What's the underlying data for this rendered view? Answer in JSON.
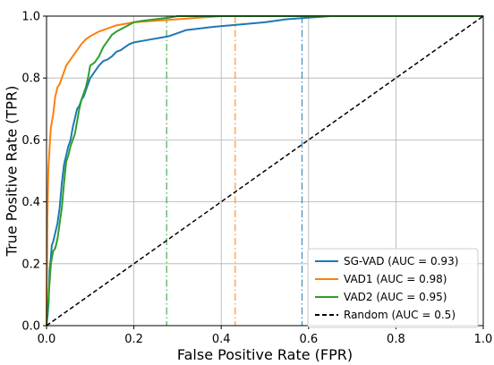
{
  "chart_data": {
    "type": "line",
    "title": "",
    "xlabel": "False Positive Rate (FPR)",
    "ylabel": "True Positive Rate (TPR)",
    "xlim": [
      0.0,
      1.0
    ],
    "ylim": [
      0.0,
      1.0
    ],
    "x_ticks": [
      "0.0",
      "0.2",
      "0.4",
      "0.6",
      "0.8",
      "1.0"
    ],
    "y_ticks": [
      "0.0",
      "0.2",
      "0.4",
      "0.6",
      "0.8",
      "1.0"
    ],
    "x_tick_values": [
      0,
      0.2,
      0.4,
      0.6,
      0.8,
      1.0
    ],
    "y_tick_values": [
      0,
      0.2,
      0.4,
      0.6,
      0.8,
      1.0
    ],
    "grid": true,
    "legend_position": "lower-right",
    "series": [
      {
        "name": "SG-VAD (AUC = 0.93)",
        "color": "#1f77b4",
        "style": "solid",
        "points": [
          [
            0,
            0
          ],
          [
            0.003,
            0.04
          ],
          [
            0.005,
            0.08
          ],
          [
            0.007,
            0.18
          ],
          [
            0.01,
            0.22
          ],
          [
            0.012,
            0.26
          ],
          [
            0.015,
            0.27
          ],
          [
            0.02,
            0.3
          ],
          [
            0.025,
            0.33
          ],
          [
            0.03,
            0.38
          ],
          [
            0.035,
            0.46
          ],
          [
            0.04,
            0.52
          ],
          [
            0.045,
            0.55
          ],
          [
            0.05,
            0.58
          ],
          [
            0.055,
            0.6
          ],
          [
            0.06,
            0.64
          ],
          [
            0.065,
            0.67
          ],
          [
            0.07,
            0.7
          ],
          [
            0.075,
            0.71
          ],
          [
            0.08,
            0.73
          ],
          [
            0.085,
            0.74
          ],
          [
            0.09,
            0.76
          ],
          [
            0.095,
            0.78
          ],
          [
            0.1,
            0.8
          ],
          [
            0.11,
            0.82
          ],
          [
            0.12,
            0.84
          ],
          [
            0.13,
            0.855
          ],
          [
            0.14,
            0.86
          ],
          [
            0.15,
            0.87
          ],
          [
            0.16,
            0.885
          ],
          [
            0.17,
            0.89
          ],
          [
            0.18,
            0.9
          ],
          [
            0.19,
            0.91
          ],
          [
            0.2,
            0.915
          ],
          [
            0.22,
            0.92
          ],
          [
            0.24,
            0.925
          ],
          [
            0.26,
            0.93
          ],
          [
            0.28,
            0.935
          ],
          [
            0.3,
            0.945
          ],
          [
            0.32,
            0.955
          ],
          [
            0.35,
            0.96
          ],
          [
            0.38,
            0.965
          ],
          [
            0.42,
            0.97
          ],
          [
            0.46,
            0.975
          ],
          [
            0.5,
            0.98
          ],
          [
            0.55,
            0.99
          ],
          [
            0.6,
            0.995
          ],
          [
            0.65,
            1.0
          ],
          [
            1.0,
            1.0
          ]
        ]
      },
      {
        "name": "VAD1 (AUC = 0.98)",
        "color": "#ff7f0e",
        "style": "solid",
        "points": [
          [
            0,
            0
          ],
          [
            0.002,
            0.35
          ],
          [
            0.004,
            0.5
          ],
          [
            0.006,
            0.55
          ],
          [
            0.008,
            0.6
          ],
          [
            0.01,
            0.64
          ],
          [
            0.015,
            0.68
          ],
          [
            0.02,
            0.74
          ],
          [
            0.025,
            0.77
          ],
          [
            0.03,
            0.78
          ],
          [
            0.035,
            0.8
          ],
          [
            0.04,
            0.82
          ],
          [
            0.045,
            0.84
          ],
          [
            0.05,
            0.85
          ],
          [
            0.06,
            0.87
          ],
          [
            0.07,
            0.89
          ],
          [
            0.08,
            0.91
          ],
          [
            0.09,
            0.925
          ],
          [
            0.1,
            0.935
          ],
          [
            0.12,
            0.95
          ],
          [
            0.14,
            0.96
          ],
          [
            0.16,
            0.97
          ],
          [
            0.18,
            0.975
          ],
          [
            0.2,
            0.98
          ],
          [
            0.25,
            0.985
          ],
          [
            0.3,
            0.99
          ],
          [
            0.35,
            0.995
          ],
          [
            0.4,
            1.0
          ],
          [
            1.0,
            1.0
          ]
        ]
      },
      {
        "name": "VAD2 (AUC = 0.95)",
        "color": "#2ca02c",
        "style": "solid",
        "points": [
          [
            0,
            0
          ],
          [
            0.005,
            0.1
          ],
          [
            0.01,
            0.2
          ],
          [
            0.015,
            0.24
          ],
          [
            0.02,
            0.25
          ],
          [
            0.025,
            0.28
          ],
          [
            0.03,
            0.33
          ],
          [
            0.035,
            0.38
          ],
          [
            0.04,
            0.46
          ],
          [
            0.045,
            0.53
          ],
          [
            0.05,
            0.55
          ],
          [
            0.055,
            0.58
          ],
          [
            0.06,
            0.6
          ],
          [
            0.065,
            0.62
          ],
          [
            0.07,
            0.66
          ],
          [
            0.075,
            0.7
          ],
          [
            0.08,
            0.73
          ],
          [
            0.09,
            0.77
          ],
          [
            0.095,
            0.8
          ],
          [
            0.1,
            0.84
          ],
          [
            0.11,
            0.85
          ],
          [
            0.12,
            0.87
          ],
          [
            0.13,
            0.9
          ],
          [
            0.14,
            0.92
          ],
          [
            0.15,
            0.94
          ],
          [
            0.16,
            0.95
          ],
          [
            0.18,
            0.965
          ],
          [
            0.2,
            0.98
          ],
          [
            0.22,
            0.985
          ],
          [
            0.25,
            0.99
          ],
          [
            0.28,
            0.995
          ],
          [
            0.3,
            1.0
          ],
          [
            1.0,
            1.0
          ]
        ]
      },
      {
        "name": "Random (AUC = 0.5)",
        "color": "#000000",
        "style": "dashed",
        "points": [
          [
            0,
            0
          ],
          [
            1.0,
            1.0
          ]
        ]
      }
    ],
    "reference_lines": [
      {
        "x": 0.275,
        "color": "#2ca02c",
        "style": "dashdot"
      },
      {
        "x": 0.432,
        "color": "#ff7f0e",
        "style": "dashdot"
      },
      {
        "x": 0.585,
        "color": "#1f77b4",
        "style": "dashdot"
      }
    ]
  }
}
